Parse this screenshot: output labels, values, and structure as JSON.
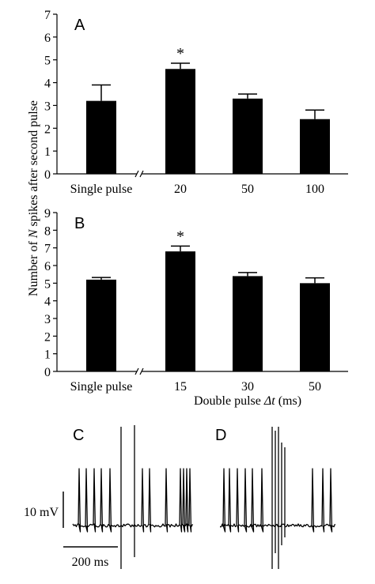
{
  "figure": {
    "ylabel_prefix": "Number of ",
    "ylabel_italic": "N",
    "ylabel_suffix": " spikes after second pulse",
    "xlabel_prefix": "Double pulse ",
    "xlabel_italic": "Δt",
    "xlabel_suffix": " (ms)"
  },
  "chart_data": [
    {
      "type": "bar",
      "panel_label": "A",
      "categories": [
        "Single pulse",
        "20",
        "50",
        "100"
      ],
      "values": [
        3.2,
        4.6,
        3.3,
        2.4
      ],
      "errors": [
        0.7,
        0.25,
        0.2,
        0.4
      ],
      "ylim": [
        0,
        7
      ],
      "yticks": [
        "0",
        "1",
        "2",
        "3",
        "4",
        "5",
        "6",
        "7"
      ],
      "significance": [
        null,
        "*",
        null,
        null
      ],
      "axis_break_after_index": 0
    },
    {
      "type": "bar",
      "panel_label": "B",
      "categories": [
        "Single pulse",
        "15",
        "30",
        "50"
      ],
      "values": [
        5.2,
        6.8,
        5.4,
        5.0
      ],
      "errors": [
        0.12,
        0.3,
        0.2,
        0.3
      ],
      "ylim": [
        0,
        9
      ],
      "yticks": [
        "0",
        "1",
        "2",
        "3",
        "4",
        "5",
        "6",
        "7",
        "8",
        "9"
      ],
      "significance": [
        null,
        "*",
        null,
        null
      ],
      "axis_break_after_index": 0
    }
  ],
  "traces": {
    "left_label": "C",
    "right_label": "D",
    "voltage_scale": "10 mV",
    "time_scale": "200 ms"
  }
}
